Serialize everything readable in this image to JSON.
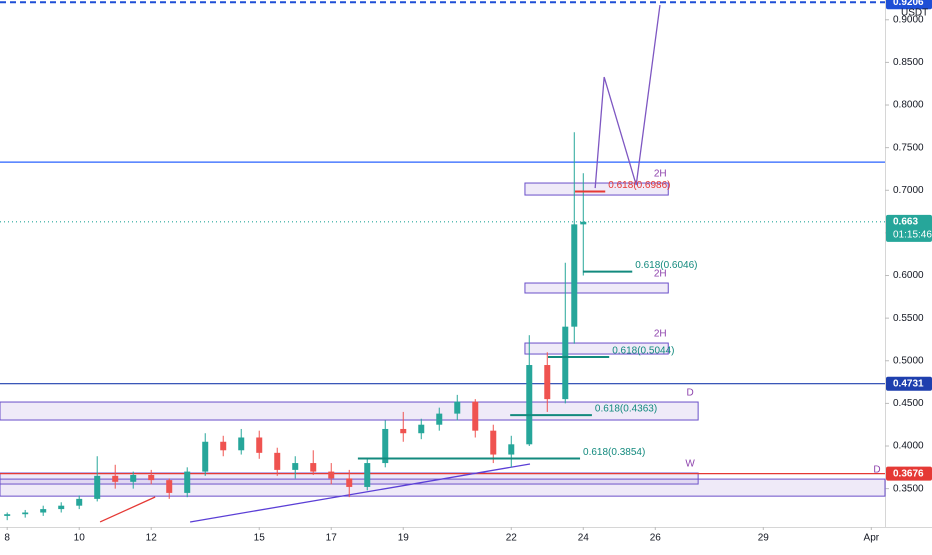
{
  "chart_data": {
    "type": "candlestick",
    "currency": "USDT",
    "countdown": "01:15:46",
    "xlim": [
      7.8,
      32.38
    ],
    "xticks": [
      8,
      10,
      12,
      15,
      17,
      19,
      22,
      24,
      26,
      29,
      {
        "value": 32,
        "label": "Apr"
      }
    ],
    "ylim": [
      0.305,
      0.9232
    ],
    "yticks": [
      {
        "value": 0.35,
        "label": "0.3500"
      },
      {
        "value": 0.4,
        "label": "0.4000"
      },
      {
        "value": 0.45,
        "label": "0.4500"
      },
      {
        "value": 0.5,
        "label": "0.5000"
      },
      {
        "value": 0.55,
        "label": "0.5500"
      },
      {
        "value": 0.6,
        "label": "0.6000"
      },
      {
        "value": 0.65,
        "label": "0.6500"
      },
      {
        "value": 0.7,
        "label": "0.7000"
      },
      {
        "value": 0.75,
        "label": "0.7500"
      },
      {
        "value": 0.8,
        "label": "0.8000"
      },
      {
        "value": 0.85,
        "label": "0.8500"
      },
      {
        "value": 0.9,
        "label": "0.9000"
      }
    ],
    "up_color": "#26a69a",
    "down_color": "#ef5350",
    "candles": [
      [
        8.0,
        0.318,
        0.322,
        0.313,
        0.32
      ],
      [
        8.5,
        0.32,
        0.325,
        0.316,
        0.322
      ],
      [
        9.0,
        0.322,
        0.33,
        0.318,
        0.326
      ],
      [
        9.5,
        0.326,
        0.334,
        0.322,
        0.33
      ],
      [
        10.0,
        0.33,
        0.342,
        0.326,
        0.338
      ],
      [
        10.5,
        0.338,
        0.388,
        0.335,
        0.365
      ],
      [
        11.0,
        0.365,
        0.378,
        0.35,
        0.358
      ],
      [
        11.5,
        0.358,
        0.37,
        0.35,
        0.366
      ],
      [
        12.0,
        0.366,
        0.372,
        0.355,
        0.36
      ],
      [
        12.5,
        0.36,
        0.362,
        0.338,
        0.345
      ],
      [
        13.0,
        0.345,
        0.375,
        0.34,
        0.37
      ],
      [
        13.5,
        0.37,
        0.415,
        0.365,
        0.405
      ],
      [
        14.0,
        0.405,
        0.412,
        0.388,
        0.395
      ],
      [
        14.5,
        0.395,
        0.42,
        0.39,
        0.41
      ],
      [
        15.0,
        0.41,
        0.418,
        0.385,
        0.392
      ],
      [
        15.5,
        0.392,
        0.398,
        0.365,
        0.372
      ],
      [
        16.0,
        0.372,
        0.388,
        0.362,
        0.38
      ],
      [
        16.5,
        0.38,
        0.395,
        0.366,
        0.37
      ],
      [
        17.0,
        0.37,
        0.38,
        0.355,
        0.362
      ],
      [
        17.5,
        0.362,
        0.372,
        0.34,
        0.352
      ],
      [
        18.0,
        0.352,
        0.385,
        0.348,
        0.38
      ],
      [
        18.5,
        0.38,
        0.43,
        0.375,
        0.42
      ],
      [
        19.0,
        0.42,
        0.44,
        0.405,
        0.415
      ],
      [
        19.5,
        0.415,
        0.432,
        0.408,
        0.425
      ],
      [
        20.0,
        0.425,
        0.445,
        0.418,
        0.438
      ],
      [
        20.5,
        0.438,
        0.46,
        0.43,
        0.452
      ],
      [
        21.0,
        0.452,
        0.455,
        0.41,
        0.418
      ],
      [
        21.5,
        0.418,
        0.425,
        0.38,
        0.39
      ],
      [
        22.0,
        0.39,
        0.412,
        0.375,
        0.402
      ],
      [
        22.5,
        0.402,
        0.53,
        0.4,
        0.495
      ],
      [
        23.0,
        0.495,
        0.51,
        0.44,
        0.455
      ],
      [
        23.5,
        0.455,
        0.615,
        0.45,
        0.54
      ],
      [
        23.75,
        0.54,
        0.768,
        0.52,
        0.66
      ],
      [
        24.0,
        0.66,
        0.72,
        0.6,
        0.663
      ]
    ],
    "hlines": [
      {
        "value": 0.9206,
        "color": "#1e4fd6",
        "dash": true
      },
      {
        "value": 0.733,
        "color": "#2962ff",
        "dash": false
      },
      {
        "value": 0.663,
        "color": "#26a69a",
        "dash": true
      },
      {
        "value": 0.4731,
        "color": "#1e3fae",
        "dash": false
      },
      {
        "value": 0.3676,
        "color": "#e53935",
        "dash": false
      }
    ],
    "zones": [
      {
        "label": "2H",
        "x": [
          22.38,
          26.36
        ],
        "y": [
          0.6944,
          0.7085
        ]
      },
      {
        "label": "2H",
        "x": [
          22.38,
          26.36
        ],
        "y": [
          0.5795,
          0.5912
        ]
      },
      {
        "label": "2H",
        "x": [
          22.38,
          26.36
        ],
        "y": [
          0.5079,
          0.5208
        ]
      },
      {
        "label": "D",
        "x": [
          7.8,
          27.19
        ],
        "y": [
          0.4305,
          0.4516
        ]
      },
      {
        "label": "W",
        "x": [
          7.8,
          27.19
        ],
        "y": [
          0.3554,
          0.3683
        ]
      },
      {
        "label": "D",
        "x": [
          7.8,
          32.38
        ],
        "y": [
          0.3412,
          0.3612
        ]
      }
    ],
    "fibs": [
      {
        "label": "0.618(0.6986)",
        "level": 0.6986,
        "x": [
          23.77,
          24.61
        ],
        "color": "#e53935"
      },
      {
        "label": "0.618(0.6046)",
        "level": 0.6046,
        "x": [
          23.99,
          25.36
        ],
        "color": "#138a7e"
      },
      {
        "label": "0.618(0.5044)",
        "level": 0.5044,
        "x": [
          23.02,
          24.72
        ],
        "color": "#138a7e"
      },
      {
        "label": "0.618(0.4363)",
        "level": 0.4363,
        "x": [
          21.97,
          24.24
        ],
        "color": "#138a7e"
      },
      {
        "label": "0.618(0.3854)",
        "level": 0.3854,
        "x": [
          17.74,
          23.91
        ],
        "color": "#138a7e"
      }
    ],
    "polylines": [
      {
        "color": "#7e57c2",
        "x": [
          24.33,
          24.58,
          25.47,
          26.13
        ],
        "y": [
          0.7026,
          0.8328,
          0.7062,
          0.9173
        ]
      },
      {
        "color": "#5b3fd6",
        "x": [
          13.08,
          22.52
        ],
        "y": [
          0.3109,
          0.3789
        ]
      },
      {
        "color": "#e53935",
        "x": [
          10.58,
          12.11
        ],
        "y": [
          0.3109,
          0.3402
        ]
      }
    ]
  }
}
